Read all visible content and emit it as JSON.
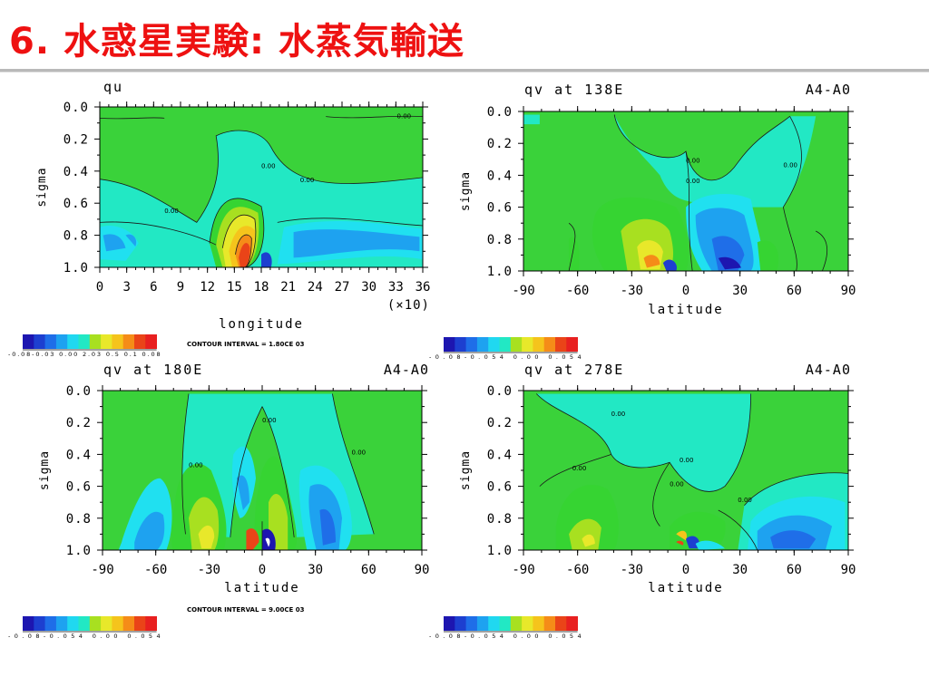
{
  "slide": {
    "title": "6. 水惑星実験: 水蒸気輸送"
  },
  "colors": {
    "title": "#ee1111",
    "scale": [
      "#1d16b0",
      "#1d3fd0",
      "#1f6ee8",
      "#1ea2f0",
      "#20d8f0",
      "#22e8c4",
      "#20d070",
      "#36d432",
      "#a8e020",
      "#e8e82a",
      "#f5c41c",
      "#f58c18",
      "#ea4418",
      "#e82020"
    ]
  },
  "chart_data": [
    {
      "id": "qu",
      "type": "heatmap",
      "title": "qu",
      "title_right": "",
      "xlabel": "longitude",
      "ylabel": "sigma",
      "x_ticks": [
        "0",
        "3",
        "6",
        "9",
        "12",
        "15",
        "18",
        "21",
        "24",
        "27",
        "30",
        "33",
        "36"
      ],
      "x_multiplier": "(×10)",
      "xlim": [
        0,
        360
      ],
      "y_ticks": [
        "0.0",
        "0.2",
        "0.4",
        "0.6",
        "0.8",
        "1.0"
      ],
      "ylim": [
        0.0,
        1.0
      ],
      "contour_labels": [
        "0.00",
        "0.00",
        "0.00",
        "0.00"
      ],
      "colorbar_labels": "-0.08-0.03 0.00 2.03 0.5 0.1 0.08",
      "contour_interval": "CONTOUR INTERVAL = 1.80CE 03"
    },
    {
      "id": "qv138",
      "type": "heatmap",
      "title": "qv at 138E",
      "title_right": "A4-A0",
      "xlabel": "latitude",
      "ylabel": "sigma",
      "x_ticks": [
        "-90",
        "-60",
        "-30",
        "0",
        "30",
        "60",
        "90"
      ],
      "xlim": [
        -90,
        90
      ],
      "y_ticks": [
        "0.0",
        "0.2",
        "0.4",
        "0.6",
        "0.8",
        "1.0"
      ],
      "ylim": [
        0.0,
        1.0
      ],
      "contour_labels": [
        "0.00",
        "0.00",
        "0.00"
      ],
      "colorbar_labels": "-0.08-0.054 0.00 0.054"
    },
    {
      "id": "qv180",
      "type": "heatmap",
      "title": "qv at 180E",
      "title_right": "A4-A0",
      "xlabel": "latitude",
      "ylabel": "sigma",
      "x_ticks": [
        "-90",
        "-60",
        "-30",
        "0",
        "30",
        "60",
        "90"
      ],
      "xlim": [
        -90,
        90
      ],
      "y_ticks": [
        "0.0",
        "0.2",
        "0.4",
        "0.6",
        "0.8",
        "1.0"
      ],
      "ylim": [
        0.0,
        1.0
      ],
      "contour_labels": [
        "0.00",
        "0.00",
        "0.00"
      ],
      "colorbar_labels": "-0.08-0.054 0.00 0.054",
      "contour_interval": "CONTOUR INTERVAL = 9.00CE 03"
    },
    {
      "id": "qv278",
      "type": "heatmap",
      "title": "qv at 278E",
      "title_right": "A4-A0",
      "xlabel": "latitude",
      "ylabel": "sigma",
      "x_ticks": [
        "-90",
        "-60",
        "-30",
        "0",
        "30",
        "60",
        "90"
      ],
      "xlim": [
        -90,
        90
      ],
      "y_ticks": [
        "0.0",
        "0.2",
        "0.4",
        "0.6",
        "0.8",
        "1.0"
      ],
      "ylim": [
        0.0,
        1.0
      ],
      "contour_labels": [
        "0.00",
        "0.00",
        "0.00",
        "0.00",
        "0.00"
      ],
      "colorbar_labels": "-0.08-0.054 0.00 0.054"
    }
  ]
}
